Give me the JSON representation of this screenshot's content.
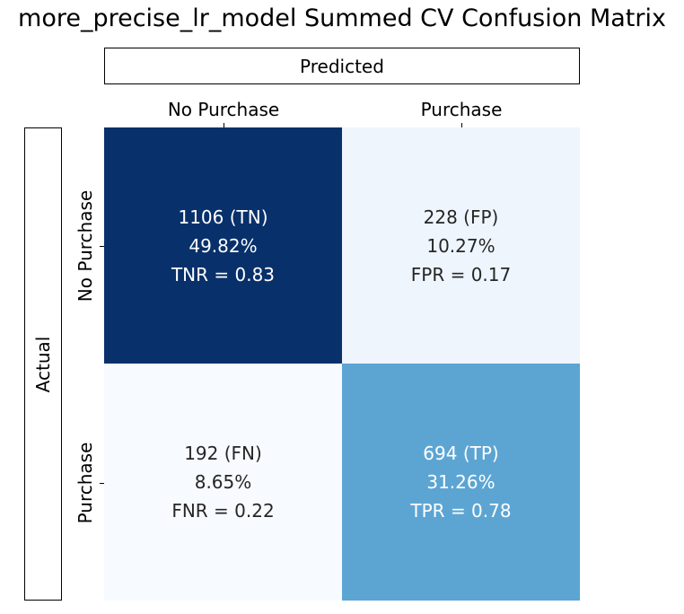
{
  "chart_data": {
    "type": "heatmap",
    "title": "more_precise_lr_model Summed CV Confusion Matrix",
    "xlabel": "Predicted",
    "ylabel": "Actual",
    "x_categories": [
      "No Purchase",
      "Purchase"
    ],
    "y_categories": [
      "No Purchase",
      "Purchase"
    ],
    "values": [
      [
        1106,
        228
      ],
      [
        192,
        694
      ]
    ],
    "cells": [
      [
        {
          "line1": "1106 (TN)",
          "line2": "49.82%",
          "line3": "TNR = 0.83",
          "color": "#08306b",
          "text_color": "#ffffff"
        },
        {
          "line1": "228 (FP)",
          "line2": "10.27%",
          "line3": "FPR = 0.17",
          "color": "#eef5fd",
          "text_color": "#262626"
        }
      ],
      [
        {
          "line1": "192 (FN)",
          "line2": "8.65%",
          "line3": "FNR = 0.22",
          "color": "#f7fbff",
          "text_color": "#262626"
        },
        {
          "line1": "694 (TP)",
          "line2": "31.26%",
          "line3": "TPR = 0.78",
          "color": "#5ca5d3",
          "text_color": "#ffffff"
        }
      ]
    ],
    "colormap": "Blues",
    "grid": false,
    "legend": "none"
  }
}
